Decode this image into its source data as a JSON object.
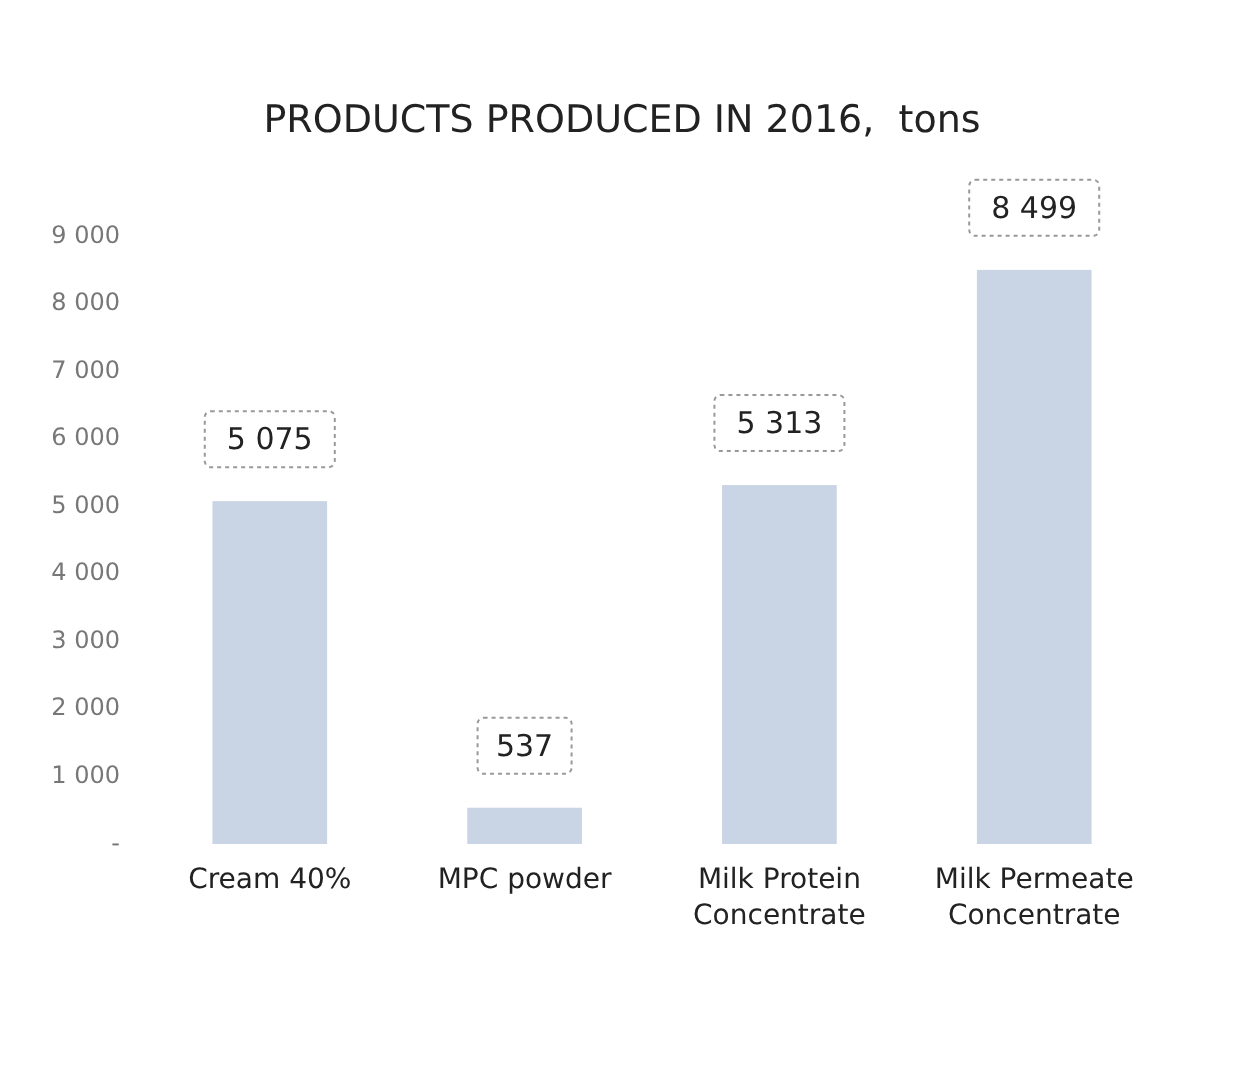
{
  "chart_data": {
    "type": "bar",
    "title": "PRODUCTS PRODUCED IN 2016,  tons",
    "categories": [
      "Cream 40%",
      "MPC powder",
      "Milk Protein Concentrate",
      "Milk Permeate Concentrate"
    ],
    "values": [
      5075,
      537,
      5313,
      8499
    ],
    "value_labels": [
      "5 075",
      "537",
      "5 313",
      "8 499"
    ],
    "color": "#c9d5e4",
    "ylim": [
      0,
      9000
    ],
    "yticks": [
      {
        "value": 0,
        "label": "-"
      },
      {
        "value": 1000,
        "label": "1 000"
      },
      {
        "value": 2000,
        "label": "2 000"
      },
      {
        "value": 3000,
        "label": "3 000"
      },
      {
        "value": 4000,
        "label": "4 000"
      },
      {
        "value": 5000,
        "label": "5 000"
      },
      {
        "value": 6000,
        "label": "6 000"
      },
      {
        "value": 7000,
        "label": "7 000"
      },
      {
        "value": 8000,
        "label": "8 000"
      },
      {
        "value": 9000,
        "label": "9 000"
      }
    ]
  }
}
